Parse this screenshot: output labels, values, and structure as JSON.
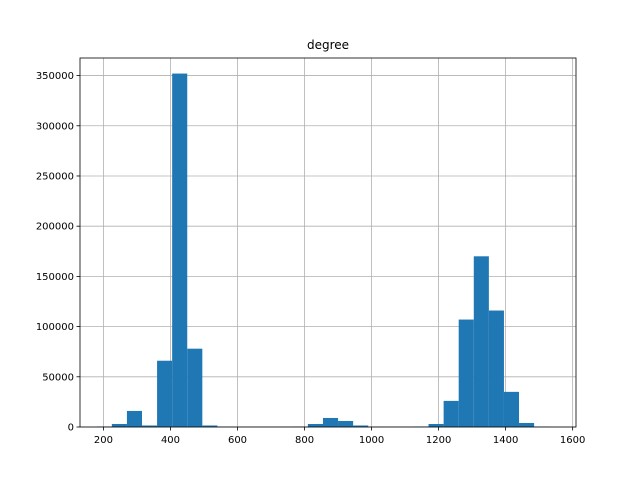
{
  "chart_data": {
    "type": "bar",
    "title": "degree",
    "xlabel": "",
    "ylabel": "",
    "grid": true,
    "bar_color": "#1f77b4",
    "grid_color": "#b0b0b0",
    "xlim": [
      130,
      1610
    ],
    "ylim": [
      0,
      367500
    ],
    "x_ticks": [
      200,
      400,
      600,
      800,
      1000,
      1200,
      1400,
      1600
    ],
    "y_ticks": [
      0,
      50000,
      100000,
      150000,
      200000,
      250000,
      300000,
      350000
    ],
    "x_tick_labels": [
      "200",
      "400",
      "600",
      "800",
      "1000",
      "1200",
      "1400",
      "1600"
    ],
    "y_tick_labels": [
      "0",
      "50000",
      "100000",
      "150000",
      "200000",
      "250000",
      "300000",
      "350000"
    ],
    "bins": [
      {
        "x0": 180,
        "x1": 225,
        "value": 500
      },
      {
        "x0": 225,
        "x1": 270,
        "value": 3000
      },
      {
        "x0": 270,
        "x1": 315,
        "value": 16000
      },
      {
        "x0": 315,
        "x1": 360,
        "value": 1500
      },
      {
        "x0": 360,
        "x1": 405,
        "value": 66000
      },
      {
        "x0": 405,
        "x1": 450,
        "value": 352000
      },
      {
        "x0": 450,
        "x1": 495,
        "value": 78000
      },
      {
        "x0": 495,
        "x1": 540,
        "value": 1500
      },
      {
        "x0": 540,
        "x1": 585,
        "value": 300
      },
      {
        "x0": 585,
        "x1": 630,
        "value": 200
      },
      {
        "x0": 630,
        "x1": 675,
        "value": 200
      },
      {
        "x0": 675,
        "x1": 720,
        "value": 200
      },
      {
        "x0": 720,
        "x1": 765,
        "value": 300
      },
      {
        "x0": 765,
        "x1": 810,
        "value": 500
      },
      {
        "x0": 810,
        "x1": 855,
        "value": 3000
      },
      {
        "x0": 855,
        "x1": 900,
        "value": 9000
      },
      {
        "x0": 900,
        "x1": 945,
        "value": 6000
      },
      {
        "x0": 945,
        "x1": 990,
        "value": 1500
      },
      {
        "x0": 990,
        "x1": 1035,
        "value": 300
      },
      {
        "x0": 1035,
        "x1": 1080,
        "value": 200
      },
      {
        "x0": 1080,
        "x1": 1125,
        "value": 200
      },
      {
        "x0": 1125,
        "x1": 1170,
        "value": 500
      },
      {
        "x0": 1170,
        "x1": 1215,
        "value": 3000
      },
      {
        "x0": 1215,
        "x1": 1260,
        "value": 26000
      },
      {
        "x0": 1260,
        "x1": 1305,
        "value": 107000
      },
      {
        "x0": 1305,
        "x1": 1350,
        "value": 170000
      },
      {
        "x0": 1350,
        "x1": 1395,
        "value": 116000
      },
      {
        "x0": 1395,
        "x1": 1440,
        "value": 35000
      },
      {
        "x0": 1440,
        "x1": 1485,
        "value": 4000
      },
      {
        "x0": 1485,
        "x1": 1530,
        "value": 300
      }
    ]
  }
}
